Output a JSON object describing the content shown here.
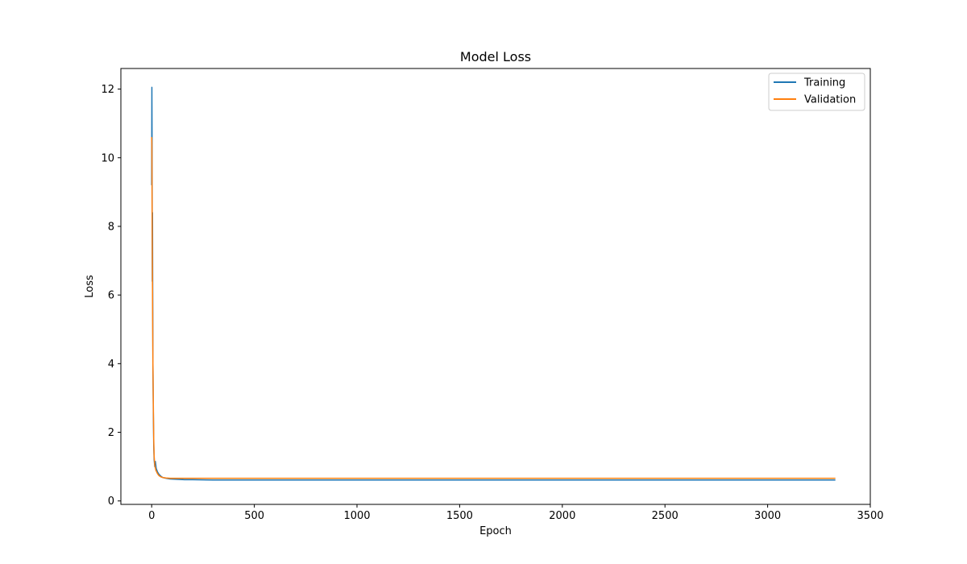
{
  "chart_data": {
    "type": "line",
    "title": "Model Loss",
    "xlabel": "Epoch",
    "ylabel": "Loss",
    "xlim": [
      -150,
      3500
    ],
    "ylim": [
      -0.1,
      12.6
    ],
    "xticks": [
      0,
      500,
      1000,
      1500,
      2000,
      2500,
      3000,
      3500
    ],
    "yticks": [
      0,
      2,
      4,
      6,
      8,
      10,
      12
    ],
    "grid": false,
    "legend_position": "top-right",
    "series": [
      {
        "name": "Training",
        "color": "#1f77b4",
        "points": [
          [
            0,
            9.2
          ],
          [
            1,
            12.05
          ],
          [
            2,
            10.3
          ],
          [
            3,
            6.4
          ],
          [
            4,
            8.4
          ],
          [
            5,
            6.2
          ],
          [
            6,
            4.0
          ],
          [
            8,
            2.6
          ],
          [
            10,
            1.6
          ],
          [
            12,
            1.2
          ],
          [
            15,
            1.0
          ],
          [
            18,
            1.15
          ],
          [
            22,
            0.95
          ],
          [
            28,
            0.85
          ],
          [
            35,
            0.78
          ],
          [
            45,
            0.72
          ],
          [
            55,
            0.68
          ],
          [
            70,
            0.66
          ],
          [
            90,
            0.64
          ],
          [
            120,
            0.63
          ],
          [
            160,
            0.62
          ],
          [
            200,
            0.62
          ],
          [
            300,
            0.61
          ],
          [
            400,
            0.61
          ],
          [
            500,
            0.61
          ],
          [
            800,
            0.61
          ],
          [
            1000,
            0.61
          ],
          [
            1500,
            0.61
          ],
          [
            2000,
            0.61
          ],
          [
            2500,
            0.61
          ],
          [
            3000,
            0.61
          ],
          [
            3330,
            0.61
          ]
        ]
      },
      {
        "name": "Validation",
        "color": "#ff7f0e",
        "points": [
          [
            0,
            10.6
          ],
          [
            1,
            10.4
          ],
          [
            2,
            8.6
          ],
          [
            3,
            7.4
          ],
          [
            4,
            6.2
          ],
          [
            5,
            5.0
          ],
          [
            6,
            4.0
          ],
          [
            8,
            2.8
          ],
          [
            10,
            1.8
          ],
          [
            12,
            1.3
          ],
          [
            15,
            1.05
          ],
          [
            20,
            0.9
          ],
          [
            28,
            0.8
          ],
          [
            35,
            0.74
          ],
          [
            45,
            0.7
          ],
          [
            55,
            0.68
          ],
          [
            70,
            0.67
          ],
          [
            90,
            0.66
          ],
          [
            120,
            0.66
          ],
          [
            160,
            0.66
          ],
          [
            200,
            0.66
          ],
          [
            300,
            0.66
          ],
          [
            500,
            0.66
          ],
          [
            1000,
            0.66
          ],
          [
            1500,
            0.66
          ],
          [
            2000,
            0.66
          ],
          [
            2500,
            0.66
          ],
          [
            3000,
            0.66
          ],
          [
            3330,
            0.66
          ]
        ]
      }
    ]
  }
}
